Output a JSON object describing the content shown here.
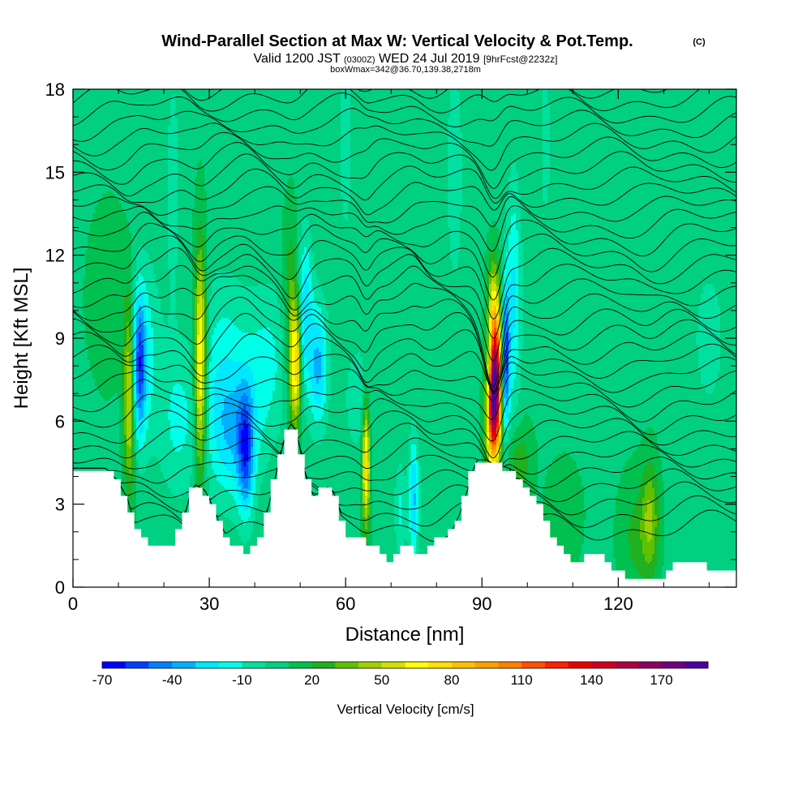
{
  "figure": {
    "title_main": "Wind-Parallel Section at Max W: Vertical Velocity & Pot.Temp.",
    "title_c": "(C)",
    "subtitle_a": "Valid 1200 JST",
    "subtitle_b": "(0300Z)",
    "subtitle_c": "WED 24 Jul 2019",
    "subtitle_d": "[9hrFcst@2232z]",
    "subtitle2": "boxWmax=342@36.70,139.38,2718m"
  },
  "chart_data": {
    "type": "heatmap",
    "xlabel": "Distance [nm]",
    "ylabel": "Height [Kft MSL]",
    "xlim": [
      0,
      146
    ],
    "ylim": [
      0,
      18
    ],
    "x_ticks": [
      0,
      30,
      60,
      90,
      120
    ],
    "y_ticks": [
      0,
      3,
      6,
      9,
      12,
      15,
      18
    ],
    "background_value": 8,
    "terrain": [
      [
        0,
        4.3
      ],
      [
        6,
        4.3
      ],
      [
        7,
        4.3
      ],
      [
        8,
        4.2
      ],
      [
        9,
        4.0
      ],
      [
        10,
        3.8
      ],
      [
        11,
        3.5
      ],
      [
        12,
        3.2
      ],
      [
        13,
        2.6
      ],
      [
        14,
        2.1
      ],
      [
        15,
        1.8
      ],
      [
        16,
        1.6
      ],
      [
        17,
        1.5
      ],
      [
        18,
        1.4
      ],
      [
        20,
        1.4
      ],
      [
        22,
        1.6
      ],
      [
        24,
        2.2
      ],
      [
        26,
        3.5
      ],
      [
        27,
        3.7
      ],
      [
        28,
        3.6
      ],
      [
        29,
        3.5
      ],
      [
        30,
        3.2
      ],
      [
        31,
        2.8
      ],
      [
        32,
        2.4
      ],
      [
        34,
        1.8
      ],
      [
        36,
        1.5
      ],
      [
        38,
        1.3
      ],
      [
        40,
        1.4
      ],
      [
        42,
        2.2
      ],
      [
        44,
        3.6
      ],
      [
        46,
        5.0
      ],
      [
        47,
        5.6
      ],
      [
        48,
        5.9
      ],
      [
        49,
        5.7
      ],
      [
        50,
        5.0
      ],
      [
        51,
        4.2
      ],
      [
        52,
        3.6
      ],
      [
        53,
        3.3
      ],
      [
        55,
        3.5
      ],
      [
        56,
        3.6
      ],
      [
        57,
        3.5
      ],
      [
        58,
        3.2
      ],
      [
        59,
        2.6
      ],
      [
        60,
        2.1
      ],
      [
        61,
        1.8
      ],
      [
        62,
        1.7
      ],
      [
        64,
        1.7
      ],
      [
        65,
        1.5
      ],
      [
        67,
        1.4
      ],
      [
        68,
        1.2
      ],
      [
        69,
        1.0
      ],
      [
        70,
        1.0
      ],
      [
        72,
        1.3
      ],
      [
        74,
        1.5
      ],
      [
        75,
        1.4
      ],
      [
        76,
        1.0
      ],
      [
        77,
        1.2
      ],
      [
        79,
        1.6
      ],
      [
        81,
        1.7
      ],
      [
        83,
        1.9
      ],
      [
        85,
        2.6
      ],
      [
        87,
        3.6
      ],
      [
        88,
        4.2
      ],
      [
        89,
        4.6
      ],
      [
        91,
        4.6
      ],
      [
        92,
        4.5
      ],
      [
        94,
        4.4
      ],
      [
        96,
        4.3
      ],
      [
        97,
        4.0
      ],
      [
        99,
        3.6
      ],
      [
        101,
        3.2
      ],
      [
        103,
        2.8
      ],
      [
        104,
        2.4
      ],
      [
        106,
        1.8
      ],
      [
        108,
        1.2
      ],
      [
        110,
        1.0
      ],
      [
        112,
        1.0
      ],
      [
        114,
        1.3
      ],
      [
        116,
        1.2
      ],
      [
        118,
        0.9
      ],
      [
        120,
        0.6
      ],
      [
        122,
        0.4
      ],
      [
        124,
        0.3
      ],
      [
        128,
        0.3
      ],
      [
        130,
        0.4
      ],
      [
        132,
        0.8
      ],
      [
        134,
        1.0
      ],
      [
        138,
        0.8
      ],
      [
        142,
        0.6
      ],
      [
        146,
        0.6
      ]
    ],
    "velocity_features": [
      {
        "x": 12.5,
        "y": 7.0,
        "sx": 0.9,
        "sy": 2.3,
        "amp": 55
      },
      {
        "x": 14.5,
        "y": 8.0,
        "sx": 1.1,
        "sy": 1.8,
        "amp": -55
      },
      {
        "x": 16.0,
        "y": 8.5,
        "sx": 2.5,
        "sy": 2.5,
        "amp": -20
      },
      {
        "x": 28.0,
        "y": 8.0,
        "sx": 0.9,
        "sy": 2.8,
        "amp": 75
      },
      {
        "x": 23.0,
        "y": 6.0,
        "sx": 2.8,
        "sy": 2.0,
        "amp": -20
      },
      {
        "x": 33.0,
        "y": 7.5,
        "sx": 4.0,
        "sy": 2.6,
        "amp": -25
      },
      {
        "x": 38.0,
        "y": 4.8,
        "sx": 1.2,
        "sy": 1.6,
        "amp": -45
      },
      {
        "x": 36.0,
        "y": 5.4,
        "sx": 3.8,
        "sy": 1.6,
        "amp": -25
      },
      {
        "x": 49.0,
        "y": 8.0,
        "sx": 0.9,
        "sy": 1.5,
        "amp": 65
      },
      {
        "x": 48.0,
        "y": 10.0,
        "sx": 1.2,
        "sy": 2.2,
        "amp": 25
      },
      {
        "x": 51.0,
        "y": 10.0,
        "sx": 1.2,
        "sy": 2.0,
        "amp": -35
      },
      {
        "x": 54.0,
        "y": 8.0,
        "sx": 1.5,
        "sy": 1.6,
        "amp": -40
      },
      {
        "x": 43.0,
        "y": 8.2,
        "sx": 3.5,
        "sy": 2.0,
        "amp": -20
      },
      {
        "x": 64.5,
        "y": 4.5,
        "sx": 0.6,
        "sy": 1.6,
        "amp": 70
      },
      {
        "x": 63.0,
        "y": 6.8,
        "sx": 2.5,
        "sy": 1.5,
        "amp": -15
      },
      {
        "x": 75.0,
        "y": 3.2,
        "sx": 0.8,
        "sy": 1.6,
        "amp": -40
      },
      {
        "x": 72.0,
        "y": 2.8,
        "sx": 0.9,
        "sy": 1.2,
        "amp": -20
      },
      {
        "x": 93.0,
        "y": 7.6,
        "sx": 0.9,
        "sy": 1.5,
        "amp": 150
      },
      {
        "x": 92.3,
        "y": 6.0,
        "sx": 1.0,
        "sy": 1.3,
        "amp": 90
      },
      {
        "x": 92.5,
        "y": 10.3,
        "sx": 0.9,
        "sy": 1.2,
        "amp": 40
      },
      {
        "x": 95.2,
        "y": 8.2,
        "sx": 0.6,
        "sy": 1.8,
        "amp": -65
      },
      {
        "x": 97.0,
        "y": 10.5,
        "sx": 1.2,
        "sy": 3.0,
        "amp": -30
      },
      {
        "x": 98.0,
        "y": 4.5,
        "sx": 2.0,
        "sy": 1.0,
        "amp": 20
      },
      {
        "x": 127.0,
        "y": 2.5,
        "sx": 1.3,
        "sy": 1.4,
        "amp": 30
      },
      {
        "x": 124.0,
        "y": 1.8,
        "sx": 2.5,
        "sy": 1.5,
        "amp": 15
      },
      {
        "x": 108.0,
        "y": 2.6,
        "sx": 2.5,
        "sy": 1.2,
        "amp": 12
      },
      {
        "x": 8.0,
        "y": 10.5,
        "sx": 3.0,
        "sy": 2.0,
        "amp": 12
      },
      {
        "x": 22.0,
        "y": 14.5,
        "sx": 1.0,
        "sy": 3.0,
        "amp": -15
      },
      {
        "x": 60.0,
        "y": 16.0,
        "sx": 1.0,
        "sy": 2.5,
        "amp": -15
      },
      {
        "x": 84.0,
        "y": 15.0,
        "sx": 1.2,
        "sy": 2.8,
        "amp": -18
      },
      {
        "x": 104.0,
        "y": 16.0,
        "sx": 1.0,
        "sy": 2.5,
        "amp": -12
      },
      {
        "x": 140.0,
        "y": 9.0,
        "sx": 4.0,
        "sy": 3.0,
        "amp": -10
      }
    ],
    "pot_temp_levels": 34,
    "colorbar": {
      "title": "Vertical Velocity [cm/s]",
      "min": -70,
      "max": 190,
      "step": 10,
      "tick_values": [
        -70,
        -40,
        -10,
        20,
        50,
        80,
        110,
        140,
        170
      ],
      "tick_labels": [
        "-70",
        "-40",
        "-10",
        "20",
        "50",
        "80",
        "110",
        "140",
        "170"
      ],
      "colors": [
        "#0000ff",
        "#0040ff",
        "#0080ff",
        "#00b0ff",
        "#00e8ff",
        "#00ffe8",
        "#00e0a0",
        "#00d080",
        "#00c050",
        "#20b020",
        "#60c000",
        "#a0d000",
        "#d0e000",
        "#ffff00",
        "#ffe000",
        "#ffc000",
        "#ffa000",
        "#ff8000",
        "#ff5000",
        "#ff2000",
        "#e80000",
        "#d00020",
        "#b00040",
        "#900060",
        "#700080",
        "#5000a0"
      ]
    }
  }
}
